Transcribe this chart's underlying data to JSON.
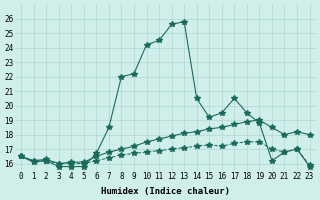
{
  "line1_x": [
    0,
    1,
    2,
    3,
    4,
    5,
    6,
    7,
    8,
    9,
    10,
    11,
    12,
    13,
    14,
    15,
    16,
    17,
    18,
    19,
    20,
    21,
    22,
    23
  ],
  "line1_y": [
    16.5,
    16.1,
    16.2,
    15.8,
    15.8,
    15.8,
    16.7,
    18.5,
    22.0,
    22.2,
    24.2,
    24.5,
    25.6,
    25.8,
    20.5,
    19.2,
    19.5,
    20.5,
    19.5,
    18.8,
    16.2,
    16.8,
    17.0,
    15.8
  ],
  "line2_x": [
    0,
    1,
    2,
    3,
    4,
    5,
    6,
    7,
    8,
    9,
    10,
    11,
    12,
    13,
    14,
    15,
    16,
    17,
    18,
    19,
    20,
    21,
    22,
    23
  ],
  "line2_y": [
    16.5,
    16.2,
    16.3,
    16.0,
    16.1,
    16.1,
    16.5,
    16.8,
    17.0,
    17.2,
    17.5,
    17.7,
    17.9,
    18.1,
    18.2,
    18.4,
    18.5,
    18.7,
    18.9,
    19.0,
    18.5,
    18.0,
    18.2,
    18.0
  ],
  "line3_x": [
    0,
    1,
    2,
    3,
    4,
    5,
    6,
    7,
    8,
    9,
    10,
    11,
    12,
    13,
    14,
    15,
    16,
    17,
    18,
    19,
    20,
    21,
    22,
    23
  ],
  "line3_y": [
    16.5,
    16.2,
    16.2,
    16.0,
    16.0,
    16.0,
    16.2,
    16.4,
    16.6,
    16.7,
    16.8,
    16.9,
    17.0,
    17.1,
    17.2,
    17.3,
    17.2,
    17.4,
    17.5,
    17.5,
    17.0,
    16.8,
    17.0,
    15.9
  ],
  "line_color": "#1a6b5e",
  "bg_color": "#d0eeea",
  "grid_color": "#b0d8d3",
  "xlabel": "Humidex (Indice chaleur)",
  "xtick_labels": [
    "0",
    "1",
    "2",
    "3",
    "4",
    "5",
    "6",
    "7",
    "8",
    "9",
    "10",
    "11",
    "12",
    "13",
    "14",
    "15",
    "16",
    "17",
    "18",
    "19",
    "20",
    "21",
    "22",
    "23"
  ],
  "ytick_labels": [
    "16",
    "17",
    "18",
    "19",
    "20",
    "21",
    "22",
    "23",
    "24",
    "25",
    "26"
  ],
  "ylim": [
    15.5,
    27.0
  ],
  "xlim": [
    -0.5,
    23.5
  ],
  "lw1": 0.8,
  "lw2": 0.8,
  "lw3": 0.7
}
